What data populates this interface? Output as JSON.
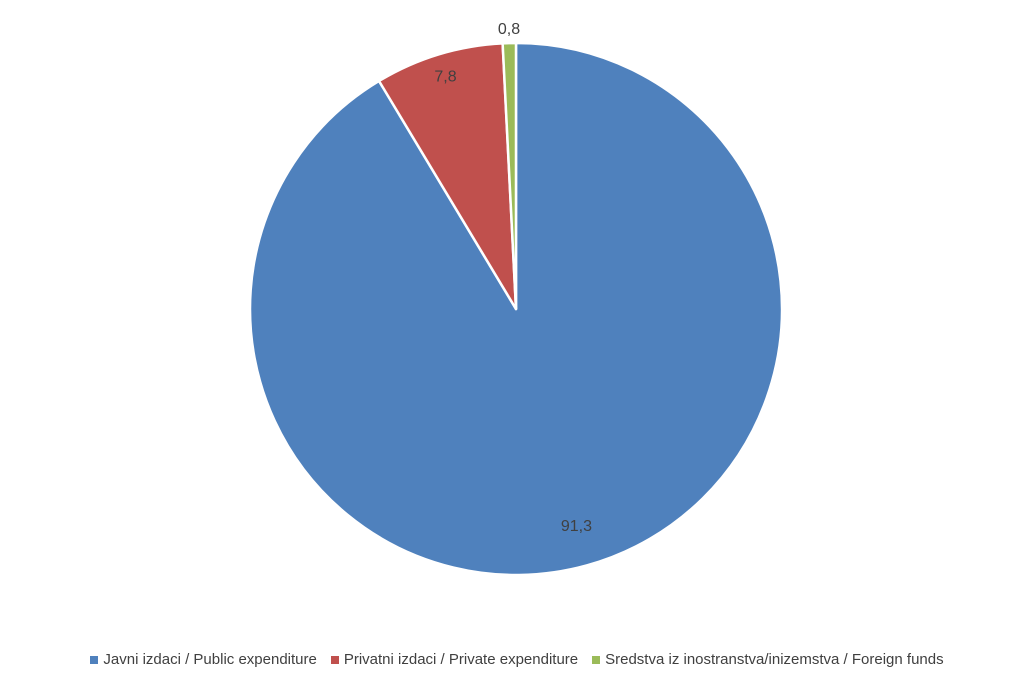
{
  "chart_data": {
    "type": "pie",
    "title": "",
    "categories": [
      "Javni izdaci / Public expenditure",
      "Privatni izdaci / Private expenditure",
      "Sredstva iz inostranstva/inizemstva / Foreign funds"
    ],
    "values": [
      91.3,
      7.8,
      0.8
    ],
    "data_labels": [
      "91,3",
      "7,8",
      "0,8"
    ],
    "colors": [
      "#4f81bd",
      "#c0504d",
      "#9bbb59"
    ],
    "start_angle": "12 o'clock",
    "direction": "clockwise",
    "legend_position": "bottom"
  }
}
